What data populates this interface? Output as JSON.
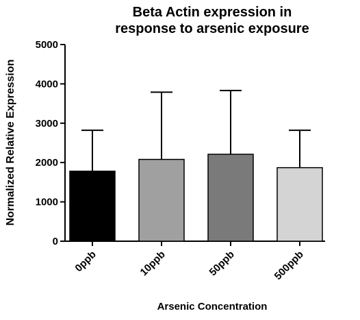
{
  "chart_data": {
    "type": "bar",
    "title": "Beta Actin expression in response to arsenic exposure",
    "x_label": "Arsenic Concentration",
    "y_label": "Normalized Relative Expression",
    "categories": [
      "0ppb",
      "10ppb",
      "50ppb",
      "500ppb"
    ],
    "values": [
      1780,
      2080,
      2210,
      1870
    ],
    "errors": [
      1040,
      1710,
      1620,
      950
    ],
    "colors": [
      "#000000",
      "#a0a0a0",
      "#7a7a7a",
      "#d4d4d4"
    ],
    "ylim": [
      0,
      5000
    ],
    "yticks": [
      0,
      1000,
      2000,
      3000,
      4000,
      5000
    ]
  }
}
